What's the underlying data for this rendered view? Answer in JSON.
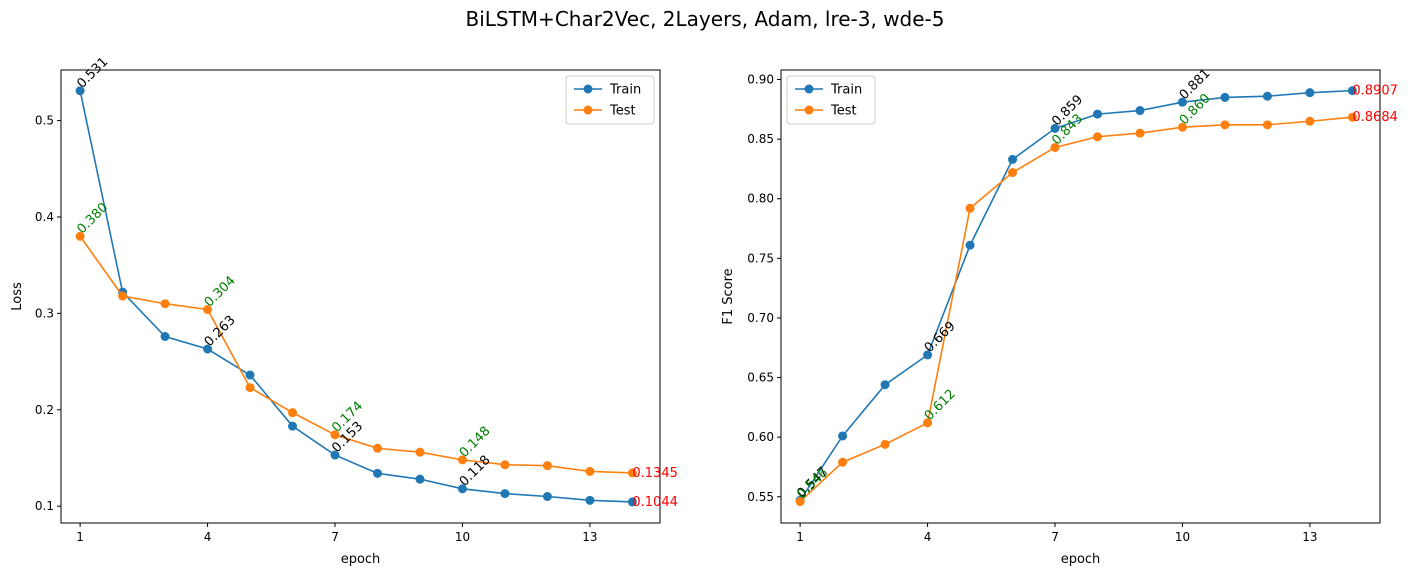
{
  "figure": {
    "suptitle": "BiLSTM+Char2Vec, 2Layers, Adam, lre-3, wde-5"
  },
  "colors": {
    "train": "#1f77b4",
    "test": "#ff7f0e",
    "train_annot": "#000000",
    "test_annot": "#008000",
    "last_annot": "#ff0000"
  },
  "chart_data": [
    {
      "type": "line",
      "title": "",
      "xlabel": "epoch",
      "ylabel": "Loss",
      "xlim": [
        0.55,
        14.65
      ],
      "ylim": [
        0.0825,
        0.5525
      ],
      "xticks": [
        1,
        4,
        7,
        10,
        13
      ],
      "yticks": [
        0.1,
        0.2,
        0.3,
        0.4,
        0.5
      ],
      "ytick_labels": [
        "0.1",
        "0.2",
        "0.3",
        "0.4",
        "0.5"
      ],
      "grid": false,
      "legend_position": "upper right",
      "x": [
        1,
        2,
        3,
        4,
        5,
        6,
        7,
        8,
        9,
        10,
        11,
        12,
        13,
        14
      ],
      "series": [
        {
          "name": "Train",
          "values": [
            0.531,
            0.322,
            0.276,
            0.263,
            0.236,
            0.183,
            0.153,
            0.134,
            0.128,
            0.118,
            0.113,
            0.11,
            0.106,
            0.1044
          ]
        },
        {
          "name": "Test",
          "values": [
            0.38,
            0.318,
            0.31,
            0.304,
            0.223,
            0.197,
            0.174,
            0.16,
            0.156,
            0.148,
            0.143,
            0.142,
            0.136,
            0.1345
          ]
        }
      ],
      "annotations": [
        {
          "series": 0,
          "x": 1,
          "text": "0.531"
        },
        {
          "series": 0,
          "x": 4,
          "text": "0.263"
        },
        {
          "series": 0,
          "x": 7,
          "text": "0.153"
        },
        {
          "series": 0,
          "x": 10,
          "text": "0.118"
        },
        {
          "series": 1,
          "x": 1,
          "text": "0.380"
        },
        {
          "series": 1,
          "x": 4,
          "text": "0.304"
        },
        {
          "series": 1,
          "x": 7,
          "text": "0.174"
        },
        {
          "series": 1,
          "x": 10,
          "text": "0.148"
        },
        {
          "series": 0,
          "x": 14,
          "text": "0.1044",
          "last": true
        },
        {
          "series": 1,
          "x": 14,
          "text": "0.1345",
          "last": true
        }
      ]
    },
    {
      "type": "line",
      "title": "",
      "xlabel": "epoch",
      "ylabel": "F1 Score",
      "xlim": [
        0.55,
        14.65
      ],
      "ylim": [
        0.528,
        0.908
      ],
      "xticks": [
        1,
        4,
        7,
        10,
        13
      ],
      "yticks": [
        0.55,
        0.6,
        0.65,
        0.7,
        0.75,
        0.8,
        0.85,
        0.9
      ],
      "ytick_labels": [
        "0.55",
        "0.60",
        "0.65",
        "0.70",
        "0.75",
        "0.80",
        "0.85",
        "0.90"
      ],
      "grid": false,
      "legend_position": "upper left",
      "x": [
        1,
        2,
        3,
        4,
        5,
        6,
        7,
        8,
        9,
        10,
        11,
        12,
        13,
        14
      ],
      "series": [
        {
          "name": "Train",
          "values": [
            0.547,
            0.601,
            0.644,
            0.669,
            0.761,
            0.833,
            0.859,
            0.871,
            0.874,
            0.881,
            0.885,
            0.886,
            0.889,
            0.8907
          ]
        },
        {
          "name": "Test",
          "values": [
            0.546,
            0.579,
            0.594,
            0.612,
            0.792,
            0.822,
            0.843,
            0.852,
            0.855,
            0.86,
            0.862,
            0.862,
            0.865,
            0.8684
          ]
        }
      ],
      "annotations": [
        {
          "series": 0,
          "x": 1,
          "text": "0.547"
        },
        {
          "series": 0,
          "x": 4,
          "text": "0.669"
        },
        {
          "series": 0,
          "x": 7,
          "text": "0.859"
        },
        {
          "series": 0,
          "x": 10,
          "text": "0.881"
        },
        {
          "series": 1,
          "x": 1,
          "text": "0.546"
        },
        {
          "series": 1,
          "x": 4,
          "text": "0.612"
        },
        {
          "series": 1,
          "x": 7,
          "text": "0.843"
        },
        {
          "series": 1,
          "x": 10,
          "text": "0.860"
        },
        {
          "series": 0,
          "x": 14,
          "text": "0.8907",
          "last": true
        },
        {
          "series": 1,
          "x": 14,
          "text": "0.8684",
          "last": true
        }
      ]
    }
  ]
}
